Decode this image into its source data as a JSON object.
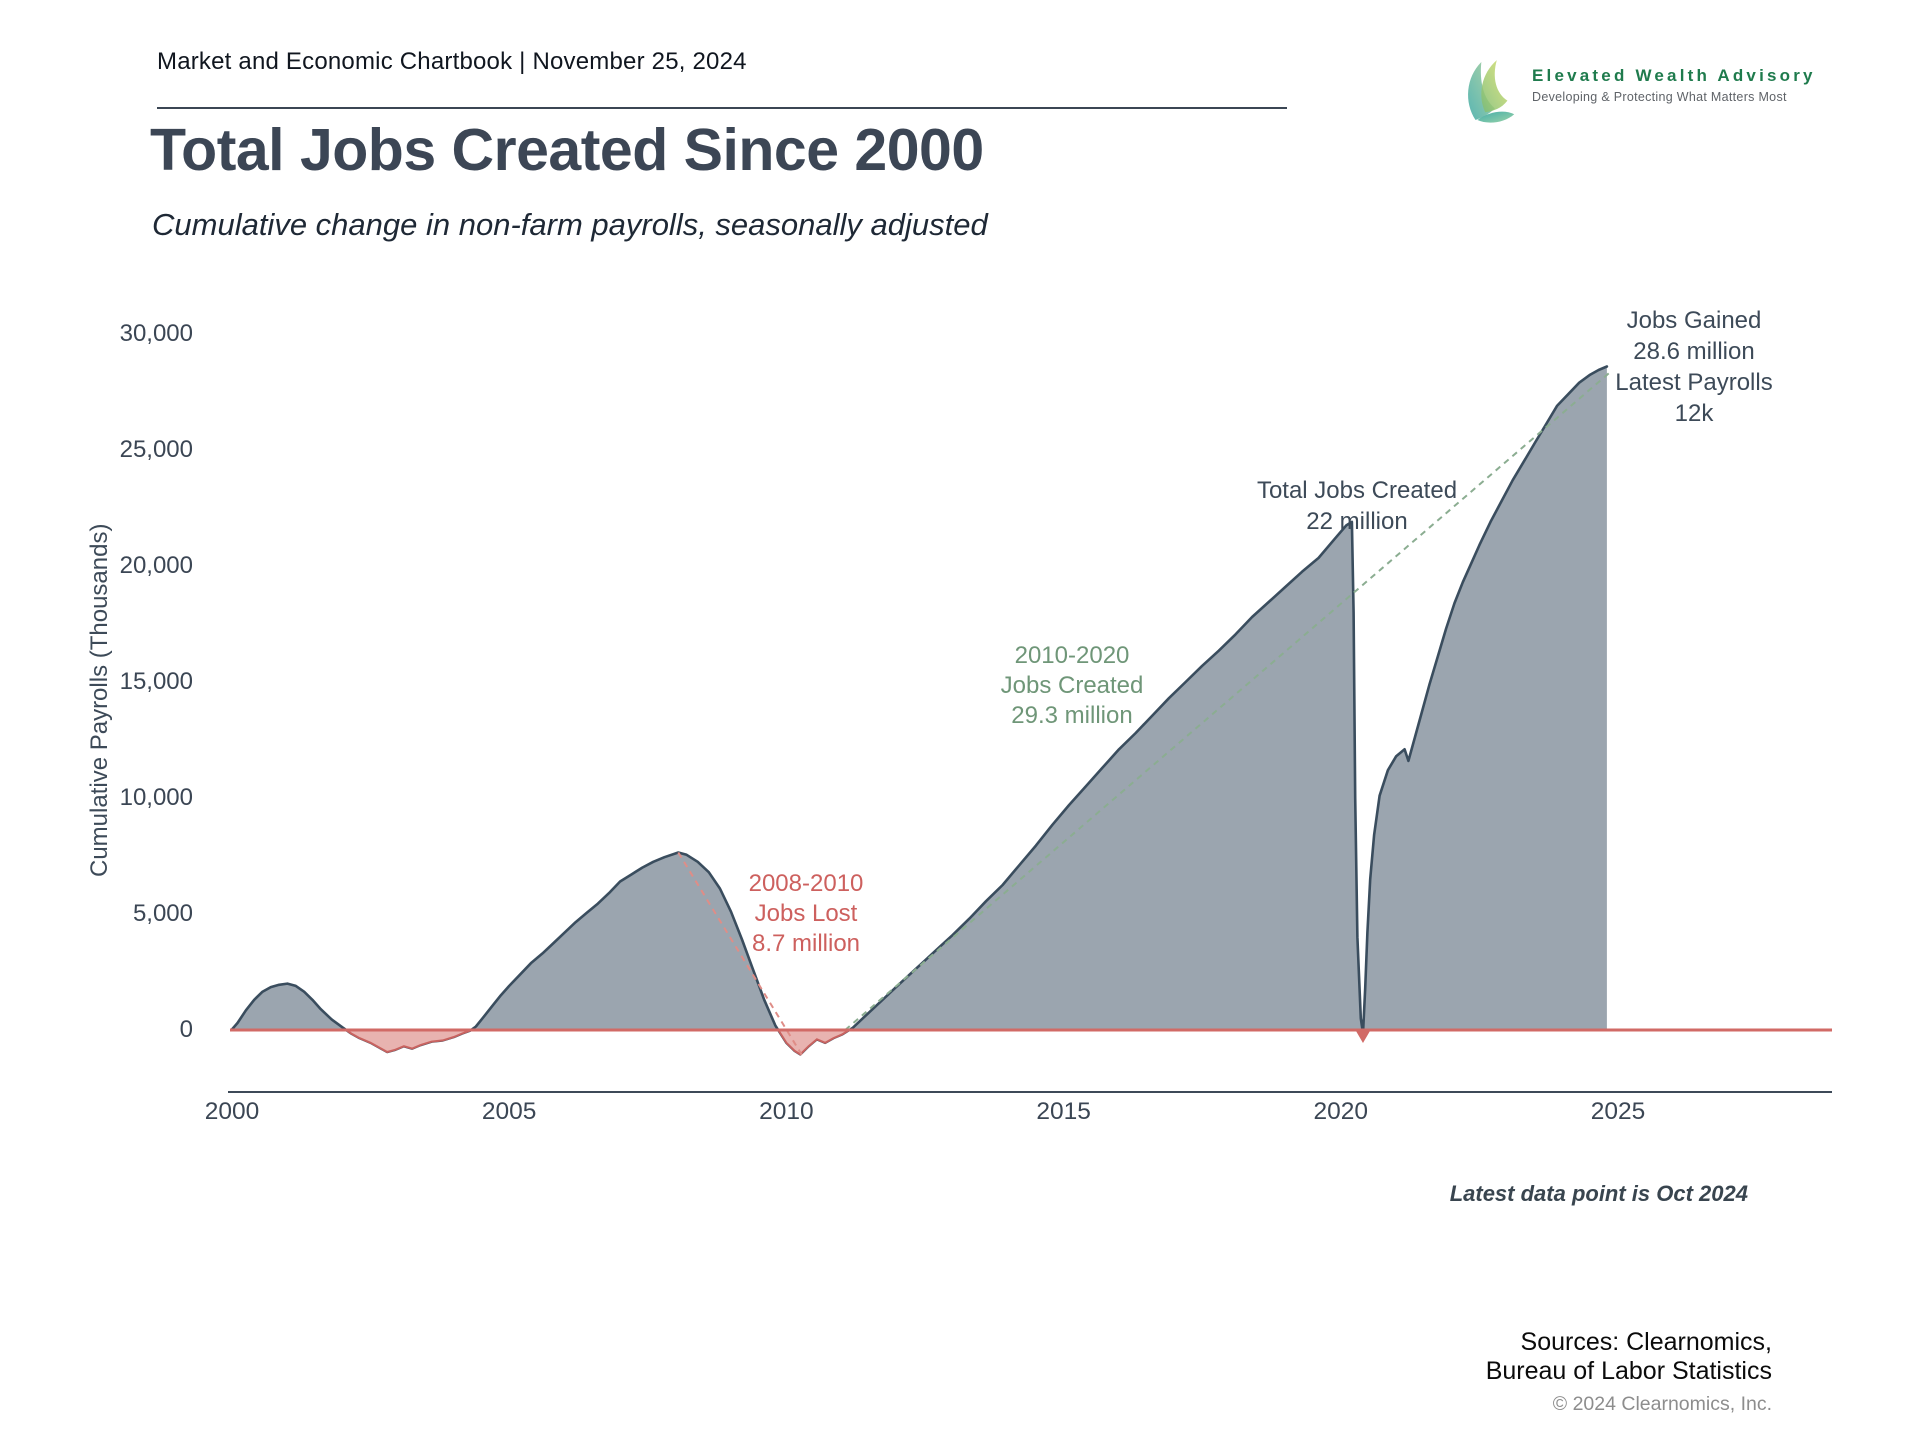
{
  "header": {
    "chartbook_label": "Market and Economic Chartbook | November 25, 2024",
    "logo": {
      "name": "Elevated Wealth Advisory",
      "tagline": "Developing & Protecting What Matters Most"
    }
  },
  "title": "Total Jobs Created Since 2000",
  "subtitle": "Cumulative change in non-farm payrolls, seasonally adjusted",
  "footnote": "Latest data point is Oct 2024",
  "footer": {
    "sources_line1": "Sources: Clearnomics,",
    "sources_line2": "Bureau of Labor Statistics",
    "copyright": "© 2024 Clearnomics, Inc."
  },
  "colors": {
    "area_fill": "#9ba5af",
    "curve_line": "#3a4d5e",
    "negative_fill": "#e8b3b0",
    "negative_line": "#c96360",
    "zero_line": "#d16a66",
    "red_dashed": "#df8d87",
    "green_dashed": "#8bad91",
    "axis": "#3d4a58"
  },
  "chart_data": {
    "type": "area",
    "title": "Total Jobs Created Since 2000",
    "subtitle": "Cumulative change in non-farm payrolls, seasonally adjusted",
    "xlabel": "",
    "ylabel": "Cumulative Payrolls (Thousands)",
    "x_ticks": [
      2000,
      2005,
      2010,
      2015,
      2020,
      2025
    ],
    "y_ticks": [
      0,
      5000,
      10000,
      15000,
      20000,
      25000,
      30000
    ],
    "xlim": [
      1999.9,
      2028.9
    ],
    "ylim": [
      -1500,
      31000
    ],
    "grid": false,
    "legend_position": "none",
    "series": [
      {
        "name": "Cumulative change in non-farm payrolls (thousands)",
        "points": [
          [
            2000.0,
            30
          ],
          [
            2000.1,
            300
          ],
          [
            2000.25,
            850
          ],
          [
            2000.4,
            1300
          ],
          [
            2000.55,
            1650
          ],
          [
            2000.7,
            1850
          ],
          [
            2000.85,
            1950
          ],
          [
            2001.0,
            2000
          ],
          [
            2001.15,
            1900
          ],
          [
            2001.3,
            1650
          ],
          [
            2001.45,
            1300
          ],
          [
            2001.6,
            900
          ],
          [
            2001.8,
            450
          ],
          [
            2002.0,
            100
          ],
          [
            2002.15,
            -150
          ],
          [
            2002.3,
            -350
          ],
          [
            2002.5,
            -550
          ],
          [
            2002.65,
            -750
          ],
          [
            2002.8,
            -950
          ],
          [
            2002.95,
            -850
          ],
          [
            2003.1,
            -700
          ],
          [
            2003.25,
            -800
          ],
          [
            2003.4,
            -650
          ],
          [
            2003.6,
            -500
          ],
          [
            2003.8,
            -450
          ],
          [
            2004.0,
            -300
          ],
          [
            2004.15,
            -150
          ],
          [
            2004.3,
            -20
          ],
          [
            2004.4,
            150
          ],
          [
            2004.55,
            600
          ],
          [
            2004.7,
            1050
          ],
          [
            2004.85,
            1500
          ],
          [
            2005.0,
            1900
          ],
          [
            2005.2,
            2400
          ],
          [
            2005.4,
            2900
          ],
          [
            2005.6,
            3300
          ],
          [
            2005.8,
            3750
          ],
          [
            2006.0,
            4200
          ],
          [
            2006.2,
            4650
          ],
          [
            2006.4,
            5050
          ],
          [
            2006.6,
            5450
          ],
          [
            2006.8,
            5900
          ],
          [
            2007.0,
            6400
          ],
          [
            2007.2,
            6700
          ],
          [
            2007.4,
            7000
          ],
          [
            2007.6,
            7250
          ],
          [
            2007.8,
            7450
          ],
          [
            2008.05,
            7650
          ],
          [
            2008.2,
            7550
          ],
          [
            2008.4,
            7250
          ],
          [
            2008.6,
            6800
          ],
          [
            2008.8,
            6100
          ],
          [
            2009.0,
            5100
          ],
          [
            2009.2,
            3900
          ],
          [
            2009.4,
            2600
          ],
          [
            2009.6,
            1300
          ],
          [
            2009.8,
            200
          ],
          [
            2010.0,
            -550
          ],
          [
            2010.15,
            -900
          ],
          [
            2010.25,
            -1050
          ],
          [
            2010.4,
            -700
          ],
          [
            2010.55,
            -400
          ],
          [
            2010.7,
            -550
          ],
          [
            2010.85,
            -350
          ],
          [
            2011.0,
            -200
          ],
          [
            2011.1,
            -50
          ],
          [
            2011.2,
            100
          ],
          [
            2011.4,
            550
          ],
          [
            2011.6,
            1000
          ],
          [
            2011.8,
            1450
          ],
          [
            2012.0,
            1900
          ],
          [
            2012.25,
            2450
          ],
          [
            2012.5,
            3000
          ],
          [
            2012.75,
            3550
          ],
          [
            2013.0,
            4100
          ],
          [
            2013.3,
            4800
          ],
          [
            2013.6,
            5550
          ],
          [
            2013.9,
            6250
          ],
          [
            2014.2,
            7100
          ],
          [
            2014.5,
            7950
          ],
          [
            2014.8,
            8850
          ],
          [
            2015.1,
            9700
          ],
          [
            2015.4,
            10500
          ],
          [
            2015.7,
            11300
          ],
          [
            2016.0,
            12100
          ],
          [
            2016.3,
            12800
          ],
          [
            2016.6,
            13550
          ],
          [
            2016.9,
            14300
          ],
          [
            2017.2,
            15000
          ],
          [
            2017.5,
            15700
          ],
          [
            2017.8,
            16350
          ],
          [
            2018.1,
            17050
          ],
          [
            2018.4,
            17800
          ],
          [
            2018.7,
            18450
          ],
          [
            2019.0,
            19100
          ],
          [
            2019.3,
            19750
          ],
          [
            2019.6,
            20350
          ],
          [
            2019.9,
            21200
          ],
          [
            2020.1,
            21750
          ],
          [
            2020.2,
            21900
          ],
          [
            2020.23,
            18000
          ],
          [
            2020.26,
            10000
          ],
          [
            2020.3,
            4000
          ],
          [
            2020.36,
            500
          ],
          [
            2020.4,
            -150
          ],
          [
            2020.44,
            1800
          ],
          [
            2020.48,
            4200
          ],
          [
            2020.53,
            6500
          ],
          [
            2020.6,
            8400
          ],
          [
            2020.7,
            10100
          ],
          [
            2020.85,
            11200
          ],
          [
            2021.0,
            11800
          ],
          [
            2021.15,
            12100
          ],
          [
            2021.22,
            11600
          ],
          [
            2021.3,
            12300
          ],
          [
            2021.45,
            13600
          ],
          [
            2021.6,
            14900
          ],
          [
            2021.75,
            16100
          ],
          [
            2021.9,
            17300
          ],
          [
            2022.05,
            18400
          ],
          [
            2022.2,
            19300
          ],
          [
            2022.35,
            20100
          ],
          [
            2022.5,
            20900
          ],
          [
            2022.7,
            21900
          ],
          [
            2022.9,
            22800
          ],
          [
            2023.1,
            23700
          ],
          [
            2023.3,
            24500
          ],
          [
            2023.5,
            25300
          ],
          [
            2023.7,
            26100
          ],
          [
            2023.9,
            26900
          ],
          [
            2024.1,
            27400
          ],
          [
            2024.3,
            27900
          ],
          [
            2024.5,
            28250
          ],
          [
            2024.65,
            28450
          ],
          [
            2024.8,
            28600
          ]
        ]
      }
    ],
    "trend_lines": [
      {
        "id": "trend-red",
        "label": "2008-2010 jobs lost trend",
        "from": [
          2008.05,
          7650
        ],
        "to": [
          2010.28,
          -1080
        ]
      },
      {
        "id": "trend-green",
        "label": "2010-2024 jobs created trend",
        "from": [
          2011.06,
          0
        ],
        "to": [
          2024.88,
          28400
        ]
      }
    ],
    "marker": {
      "year": 2020.4,
      "type": "triangle-down",
      "meaning": "Covid trough at zero line"
    },
    "annotations": {
      "jobs_lost": [
        "2008-2010",
        "Jobs Lost",
        "8.7 million"
      ],
      "jobs_created": [
        "2010-2020",
        "Jobs Created",
        "29.3 million"
      ],
      "total_jobs": [
        "Total Jobs Created",
        "22 million"
      ],
      "latest": [
        "Jobs Gained",
        "28.6 million",
        "Latest Payrolls",
        "12k"
      ]
    }
  }
}
